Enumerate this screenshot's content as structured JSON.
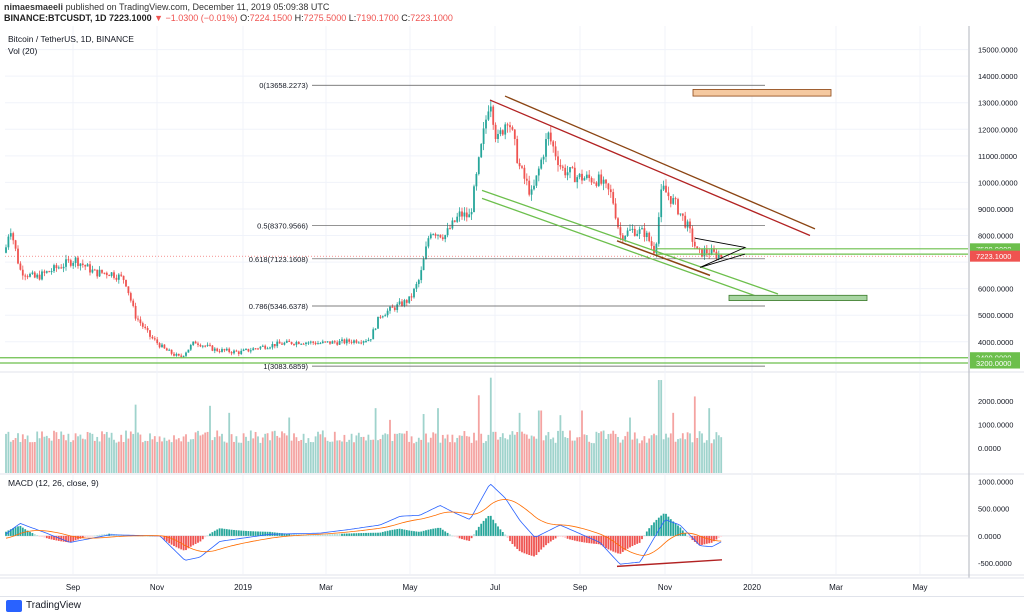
{
  "header": {
    "author": "nimaesmaeeli",
    "published": "published on TradingView.com, December 11, 2019 05:09:38 UTC",
    "symbol": "BINANCE:BTCUSDT, 1D",
    "last": "7223.1000",
    "change": "▼ −1.0300 (−0.01%)",
    "ohlc": [
      {
        "k": "O:",
        "v": "7224.1500"
      },
      {
        "k": "H:",
        "v": "7275.5000"
      },
      {
        "k": "L:",
        "v": "7190.1700"
      },
      {
        "k": "C:",
        "v": "7223.1000"
      }
    ]
  },
  "footer": {
    "brand": "TradingView"
  },
  "colors": {
    "up": "#26a69a",
    "down": "#ef5350",
    "green_line": "#6cbf4c",
    "green_box": "#a8d5a2",
    "orange_box": "#f5c9a0",
    "red_line": "#b22222",
    "brown_line": "#8b4513",
    "price_tag": "#ef5350",
    "grid": "#f0f3fa"
  },
  "chart_data": {
    "type": "candlestick",
    "title": "Bitcoin / TetherUS, 1D, BINANCE",
    "volume_label": "Vol (20)",
    "macd_label": "MACD (12, 26, close, 9)",
    "x_ticks": [
      "Sep",
      "Nov",
      "2019",
      "Mar",
      "May",
      "Jul",
      "Sep",
      "Nov",
      "2020",
      "Mar",
      "May"
    ],
    "price_ticks": [
      "15000.0000",
      "14000.0000",
      "13000.0000",
      "12000.0000",
      "11000.0000",
      "10000.0000",
      "9000.0000",
      "8000.0000",
      "6000.0000",
      "5000.0000",
      "4000.0000"
    ],
    "price_ylim": [
      2900,
      15700
    ],
    "volume_ticks": [
      "2000.0000",
      "1000.0000",
      "0.0000"
    ],
    "macd_ticks": [
      "1000.0000",
      "500.0000",
      "0.0000",
      "-500.0000"
    ],
    "macd_ylim": [
      -700,
      1100
    ],
    "fib_levels": [
      {
        "label": "0(13658.2273)",
        "price": 13658
      },
      {
        "label": "0.5(8370.9566)",
        "price": 8371
      },
      {
        "label": "0.618(7123.1608)",
        "price": 7123
      },
      {
        "label": "0.786(5346.6378)",
        "price": 5347
      },
      {
        "label": "1(3083.6859)",
        "price": 3084
      }
    ],
    "horizontal_levels": [
      {
        "label": "7500.0000",
        "price": 7500
      },
      {
        "label": "7300.0000",
        "price": 7300
      },
      {
        "label": "3400.0000",
        "price": 3400
      },
      {
        "label": "3200.0000",
        "price": 3200
      }
    ],
    "current_price": {
      "label": "7223.1000",
      "price": 7223
    },
    "price_anchors": [
      [
        0,
        6300
      ],
      [
        10,
        8400
      ],
      [
        20,
        6700
      ],
      [
        35,
        6400
      ],
      [
        55,
        6750
      ],
      [
        75,
        7100
      ],
      [
        95,
        6600
      ],
      [
        110,
        6600
      ],
      [
        125,
        6350
      ],
      [
        135,
        5000
      ],
      [
        150,
        4200
      ],
      [
        165,
        3700
      ],
      [
        180,
        3400
      ],
      [
        195,
        4000
      ],
      [
        215,
        3700
      ],
      [
        240,
        3600
      ],
      [
        260,
        3800
      ],
      [
        275,
        3900
      ],
      [
        300,
        4000
      ],
      [
        320,
        3950
      ],
      [
        345,
        4000
      ],
      [
        370,
        4100
      ],
      [
        380,
        5000
      ],
      [
        395,
        5300
      ],
      [
        410,
        5600
      ],
      [
        420,
        6400
      ],
      [
        430,
        8200
      ],
      [
        445,
        8000
      ],
      [
        460,
        8800
      ],
      [
        470,
        8700
      ],
      [
        480,
        11000
      ],
      [
        490,
        13300
      ],
      [
        497,
        11500
      ],
      [
        508,
        12500
      ],
      [
        520,
        10500
      ],
      [
        532,
        9500
      ],
      [
        548,
        11800
      ],
      [
        562,
        10500
      ],
      [
        578,
        10200
      ],
      [
        598,
        10100
      ],
      [
        612,
        9500
      ],
      [
        620,
        8000
      ],
      [
        632,
        8200
      ],
      [
        645,
        8100
      ],
      [
        655,
        7400
      ],
      [
        662,
        9800
      ],
      [
        675,
        9200
      ],
      [
        688,
        8300
      ],
      [
        698,
        7300
      ],
      [
        706,
        7400
      ],
      [
        714,
        7300
      ],
      [
        722,
        7223
      ]
    ],
    "volume_spikes": [
      {
        "x": 135,
        "v": 1850
      },
      {
        "x": 210,
        "v": 1800
      },
      {
        "x": 230,
        "v": 1500
      },
      {
        "x": 290,
        "v": 1300
      },
      {
        "x": 375,
        "v": 1700
      },
      {
        "x": 390,
        "v": 1200
      },
      {
        "x": 423,
        "v": 1450
      },
      {
        "x": 438,
        "v": 1700
      },
      {
        "x": 478,
        "v": 2250
      },
      {
        "x": 490,
        "v": 3000
      },
      {
        "x": 520,
        "v": 1500
      },
      {
        "x": 540,
        "v": 1600
      },
      {
        "x": 560,
        "v": 1400
      },
      {
        "x": 582,
        "v": 1600
      },
      {
        "x": 630,
        "v": 1300
      },
      {
        "x": 660,
        "v": 2900
      },
      {
        "x": 673,
        "v": 1500
      },
      {
        "x": 695,
        "v": 2200
      },
      {
        "x": 710,
        "v": 1700
      }
    ],
    "macd_anchors": [
      [
        0,
        -50
      ],
      [
        20,
        230
      ],
      [
        45,
        60
      ],
      [
        70,
        -120
      ],
      [
        110,
        20
      ],
      [
        160,
        0
      ],
      [
        185,
        -450
      ],
      [
        200,
        -390
      ],
      [
        220,
        -100
      ],
      [
        270,
        30
      ],
      [
        320,
        50
      ],
      [
        350,
        120
      ],
      [
        380,
        200
      ],
      [
        400,
        360
      ],
      [
        420,
        380
      ],
      [
        440,
        560
      ],
      [
        455,
        420
      ],
      [
        470,
        300
      ],
      [
        490,
        960
      ],
      [
        505,
        700
      ],
      [
        520,
        280
      ],
      [
        535,
        -30
      ],
      [
        560,
        200
      ],
      [
        580,
        40
      ],
      [
        600,
        -120
      ],
      [
        620,
        -520
      ],
      [
        640,
        -480
      ],
      [
        665,
        300
      ],
      [
        680,
        200
      ],
      [
        700,
        -180
      ],
      [
        712,
        -200
      ],
      [
        722,
        -100
      ]
    ]
  }
}
